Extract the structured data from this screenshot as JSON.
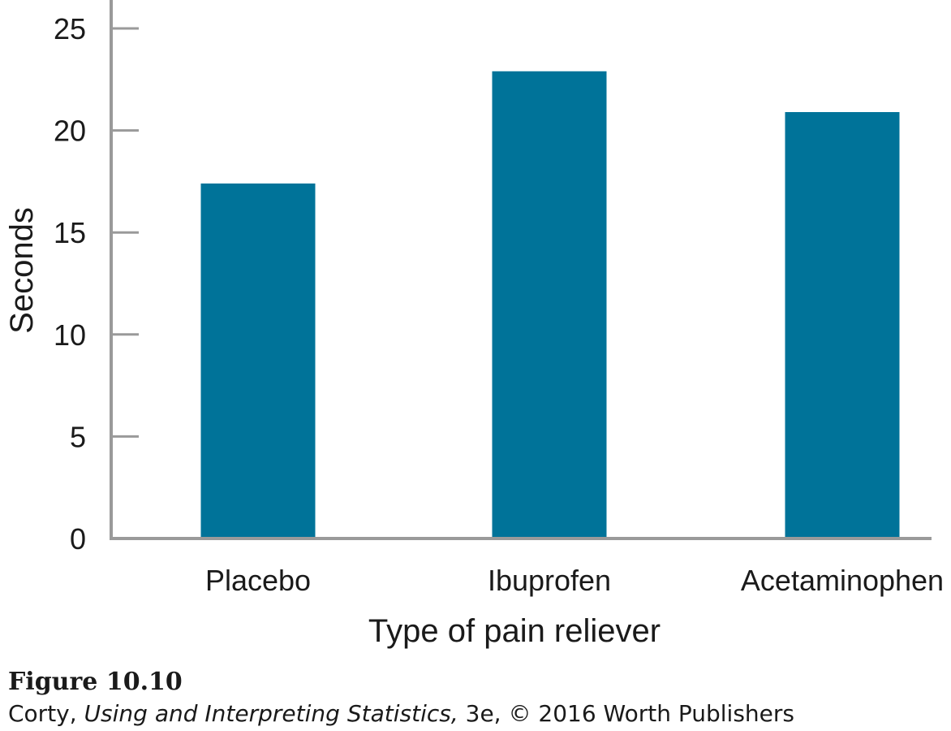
{
  "chart_data": {
    "type": "bar",
    "categories": [
      "Placebo",
      "Ibuprofen",
      "Acetaminophen"
    ],
    "values": [
      17.4,
      22.9,
      20.9
    ],
    "xlabel": "Type of pain reliever",
    "ylabel": "Seconds",
    "ylim": [
      0,
      25
    ],
    "yticks": [
      0,
      5,
      10,
      15,
      20,
      25
    ],
    "grid": false,
    "legend": "none",
    "bar_color": "#007399",
    "axis_color": "#9a9a9a"
  },
  "caption": {
    "figure": "Figure 10.10",
    "author": "Corty",
    "sep": ", ",
    "book": "Using and Interpreting Statistics,",
    "rest": " 3e, © 2016 Worth Publishers"
  }
}
